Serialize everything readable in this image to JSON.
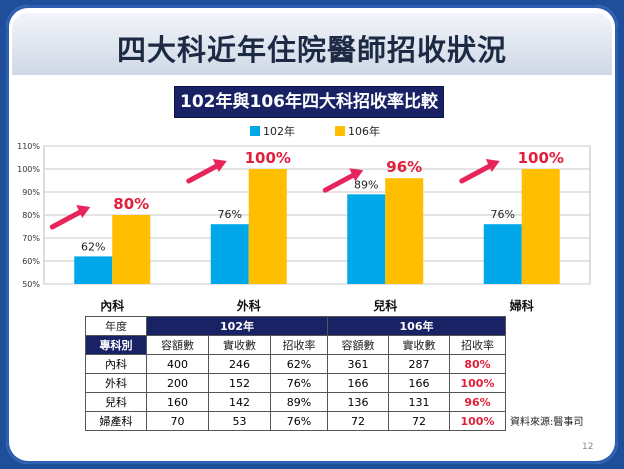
{
  "slide": {
    "title": "四大科近年住院醫師招收狀況",
    "subtitle": "102年與106年四大科招收率比較",
    "source": "資料來源:醫事司",
    "page_number": "12"
  },
  "chart_data": {
    "type": "bar",
    "title": "102年與106年四大科招收率比較",
    "categories": [
      "內科",
      "外科",
      "兒科",
      "婦科"
    ],
    "series": [
      {
        "name": "102年",
        "values": [
          62,
          76,
          89,
          76
        ],
        "labels": [
          "62%",
          "76%",
          "89%",
          "76%"
        ],
        "color": "#00a7e9"
      },
      {
        "name": "106年",
        "values": [
          80,
          100,
          96,
          100
        ],
        "labels": [
          "80%",
          "100%",
          "96%",
          "100%"
        ],
        "color": "#ffbf00"
      }
    ],
    "ylim": [
      50,
      110
    ],
    "yticks": [
      "50%",
      "60%",
      "70%",
      "80%",
      "90%",
      "100%",
      "110%"
    ],
    "legend": "top-center",
    "grid": true,
    "highlight_label_color": "#e0203a",
    "arrow_color": "#e8245c"
  },
  "table": {
    "year_header": "年度",
    "year_102": "102年",
    "year_106": "106年",
    "col_header": "專科別",
    "subheaders": [
      "容額數",
      "實收數",
      "招收率",
      "容額數",
      "實收數",
      "招收率"
    ],
    "rows": [
      {
        "name": "內科",
        "cells": [
          "400",
          "246",
          "62%",
          "361",
          "287",
          "80%"
        ]
      },
      {
        "name": "外科",
        "cells": [
          "200",
          "152",
          "76%",
          "166",
          "166",
          "100%"
        ]
      },
      {
        "name": "兒科",
        "cells": [
          "160",
          "142",
          "89%",
          "136",
          "131",
          "96%"
        ]
      },
      {
        "name": "婦產科",
        "cells": [
          "70",
          "53",
          "76%",
          "72",
          "72",
          "100%"
        ]
      }
    ]
  }
}
